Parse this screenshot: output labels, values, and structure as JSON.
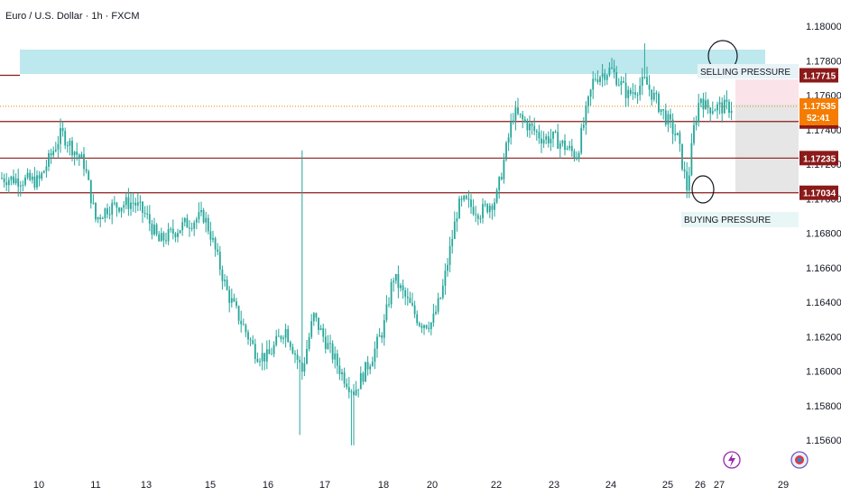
{
  "header": {
    "title": "Euro / U.S. Dollar · 1h · FXCM"
  },
  "countdown": "52:41",
  "icons": {
    "events": "lightning-icon",
    "flag": "flag-icon"
  },
  "colors": {
    "up": "#26a69a",
    "down": "#26a69a",
    "level_line": "#8b1a1a",
    "resistance_zone": "#bde8ee",
    "stop_zone": "#fbe3ea",
    "target_zone": "#e6e6e6",
    "price_tag": "#f57c00",
    "level_tag": "#8b1a1a",
    "current_dots": "#f57c00"
  },
  "chart_data": {
    "type": "candlestick",
    "title": "Euro / U.S. Dollar · 1h · FXCM",
    "ylim": [
      1.1552,
      1.181
    ],
    "y_ticks": [
      "1.18000",
      "1.17800",
      "1.17600",
      "1.17400",
      "1.17200",
      "1.17000",
      "1.16800",
      "1.16600",
      "1.16400",
      "1.16200",
      "1.16000",
      "1.15800",
      "1.15600"
    ],
    "x_ticks": [
      "10",
      "11",
      "13",
      "15",
      "16",
      "17",
      "18",
      "20",
      "22",
      "23",
      "24",
      "25",
      "26",
      "27",
      "29"
    ],
    "current_price": "1.17535",
    "horizontal_levels": [
      "1.17715",
      "1.17447",
      "1.17235",
      "1.17034"
    ],
    "annotations": [
      "SELLING PRESSURE",
      "BUYING PRESSURE"
    ],
    "price_anchors": [
      [
        "10",
        1.171
      ],
      [
        "10.4",
        1.1738
      ],
      [
        "10.8",
        1.172
      ],
      [
        "11",
        1.1688
      ],
      [
        "11.5",
        1.1695
      ],
      [
        "12.5",
        1.1698
      ],
      [
        "13",
        1.169
      ],
      [
        "13.4",
        1.1675
      ],
      [
        "14.2",
        1.1685
      ],
      [
        "14.8",
        1.169
      ],
      [
        "15",
        1.168
      ],
      [
        "15.3",
        1.1645
      ],
      [
        "15.8",
        1.161
      ],
      [
        "16",
        1.1608
      ],
      [
        "16.3",
        1.1625
      ],
      [
        "16.6",
        1.16
      ],
      [
        "16.8",
        1.1632
      ],
      [
        "17",
        1.1618
      ],
      [
        "17.3",
        1.1598
      ],
      [
        "17.5",
        1.1588
      ],
      [
        "17.8",
        1.1608
      ],
      [
        "18",
        1.1625
      ],
      [
        "18.4",
        1.1655
      ],
      [
        "19",
        1.164
      ],
      [
        "19.5",
        1.1628
      ],
      [
        "20",
        1.1628
      ],
      [
        "20.3",
        1.1645
      ],
      [
        "20.8",
        1.1695
      ],
      [
        "21",
        1.1698
      ],
      [
        "21.5",
        1.1692
      ],
      [
        "22",
        1.17
      ],
      [
        "22.3",
        1.175
      ],
      [
        "22.8",
        1.1735
      ],
      [
        "23",
        1.1735
      ],
      [
        "23.4",
        1.1725
      ],
      [
        "23.7",
        1.177
      ],
      [
        "24",
        1.1775
      ],
      [
        "24.3",
        1.176
      ],
      [
        "24.6",
        1.1768
      ],
      [
        "25",
        1.1745
      ],
      [
        "25.3",
        1.1735
      ],
      [
        "25.6",
        1.1705
      ],
      [
        "25.8",
        1.174
      ],
      [
        "26",
        1.176
      ],
      [
        "26.3",
        1.1753
      ]
    ]
  }
}
